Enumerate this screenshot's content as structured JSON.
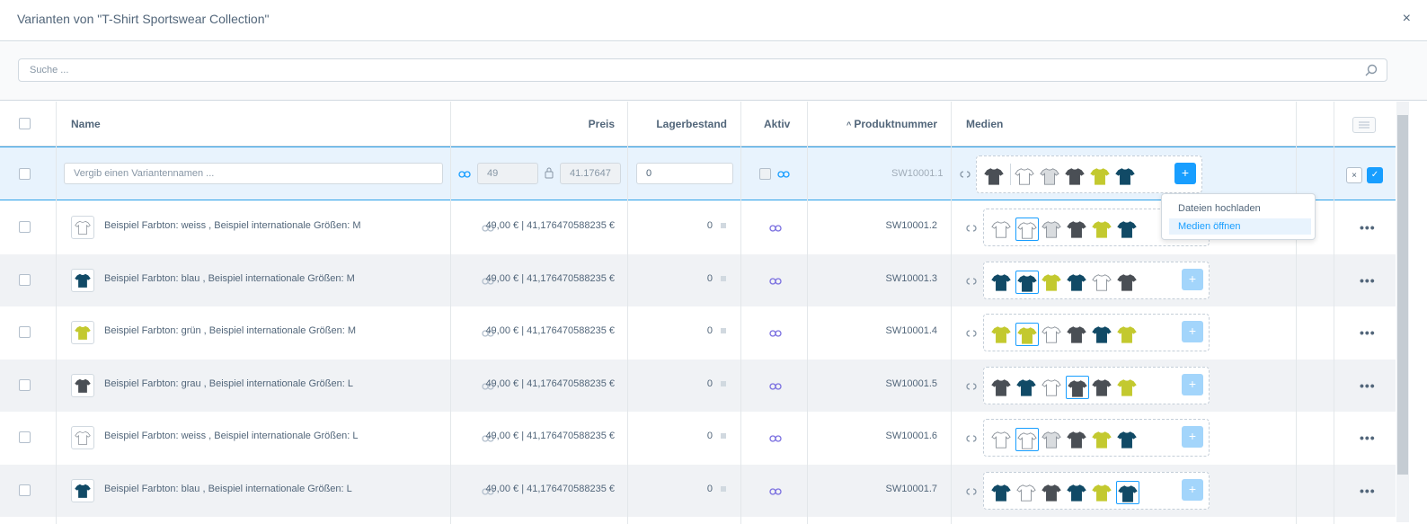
{
  "modal": {
    "title": "Varianten von \"T-Shirt Sportswear Collection\"",
    "close": "×"
  },
  "search": {
    "placeholder": "Suche ..."
  },
  "columns": {
    "name": "Name",
    "price": "Preis",
    "stock": "Lagerbestand",
    "active": "Aktiv",
    "productnumber": "Produktnummer",
    "media": "Medien"
  },
  "sort_indicator": "^",
  "edit_row": {
    "name_placeholder": "Vergib einen Variantennamen ...",
    "price_gross": "49",
    "price_net": "41.17647",
    "stock": "0",
    "productnumber": "SW10001.1",
    "media": [
      "darkgrey",
      "white",
      "lightgrey",
      "darkgrey",
      "lime",
      "navy"
    ],
    "add_label": "+",
    "cancel_label": "×",
    "save_label": "✓"
  },
  "popover": {
    "upload": "Dateien hochladen",
    "open": "Medien öffnen"
  },
  "rows": [
    {
      "color": "white",
      "name": "Beispiel Farbton: weiss , Beispiel internationale Größen: M",
      "price": "49,00 € | 41,176470588235 €",
      "stock": "0",
      "productnumber": "SW10001.2",
      "media": [
        "white",
        "white",
        "lightgrey",
        "darkgrey",
        "lime",
        "navy"
      ],
      "selected": 1
    },
    {
      "color": "navy",
      "name": "Beispiel Farbton: blau , Beispiel internationale Größen: M",
      "price": "49,00 € | 41,176470588235 €",
      "stock": "0",
      "productnumber": "SW10001.3",
      "media": [
        "navy",
        "navy",
        "lime",
        "navy",
        "white",
        "darkgrey"
      ],
      "selected": 1
    },
    {
      "color": "lime",
      "name": "Beispiel Farbton: grün , Beispiel internationale Größen: M",
      "price": "49,00 € | 41,176470588235 €",
      "stock": "0",
      "productnumber": "SW10001.4",
      "media": [
        "lime",
        "lime",
        "white",
        "darkgrey",
        "navy",
        "lime"
      ],
      "selected": 1
    },
    {
      "color": "darkgrey",
      "name": "Beispiel Farbton: grau , Beispiel internationale Größen: L",
      "price": "49,00 € | 41,176470588235 €",
      "stock": "0",
      "productnumber": "SW10001.5",
      "media": [
        "darkgrey",
        "navy",
        "white",
        "darkgrey",
        "darkgrey",
        "lime"
      ],
      "selected": 3
    },
    {
      "color": "white",
      "name": "Beispiel Farbton: weiss , Beispiel internationale Größen: L",
      "price": "49,00 € | 41,176470588235 €",
      "stock": "0",
      "productnumber": "SW10001.6",
      "media": [
        "white",
        "white",
        "lightgrey",
        "darkgrey",
        "lime",
        "navy"
      ],
      "selected": 1
    },
    {
      "color": "navy",
      "name": "Beispiel Farbton: blau , Beispiel internationale Größen: L",
      "price": "49,00 € | 41,176470588235 €",
      "stock": "0",
      "productnumber": "SW10001.7",
      "media": [
        "navy",
        "white",
        "darkgrey",
        "navy",
        "lime",
        "navy"
      ],
      "selected": 5
    }
  ],
  "row_action": "•••",
  "colors": {
    "white": "#ffffff",
    "lightgrey": "#d9dcdf",
    "darkgrey": "#4a4f55",
    "lime": "#c3c92f",
    "navy": "#114a66",
    "accent": "#189eff"
  }
}
